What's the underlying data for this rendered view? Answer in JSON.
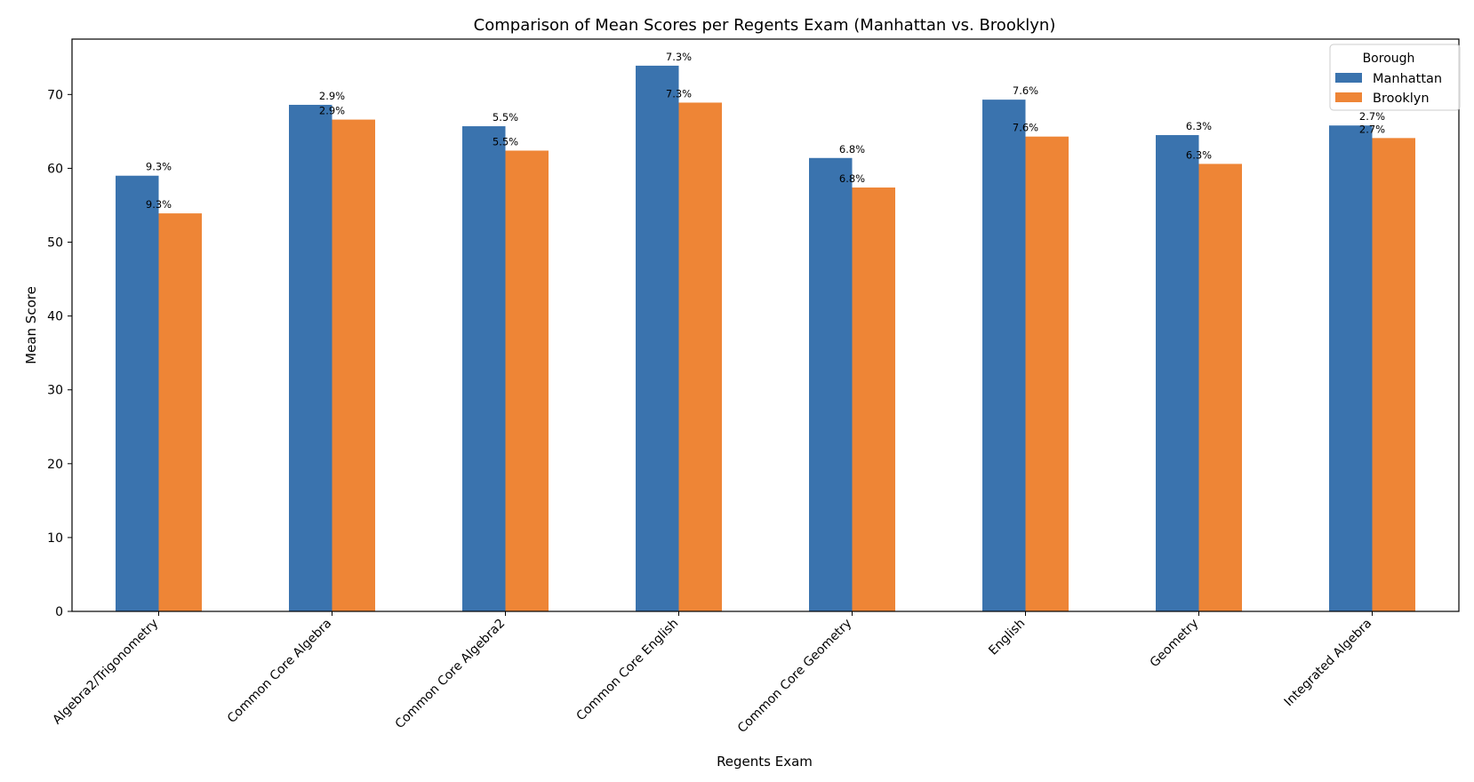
{
  "chart_data": {
    "type": "bar",
    "title": "Comparison of Mean Scores per Regents Exam (Manhattan vs. Brooklyn)",
    "xlabel": "Regents Exam",
    "ylabel": "Mean Score",
    "ylim": [
      0,
      77.5
    ],
    "yticks": [
      0,
      10,
      20,
      30,
      40,
      50,
      60,
      70
    ],
    "grid": false,
    "legend": {
      "title": "Borough",
      "placement": "top-right"
    },
    "categories": [
      "Algebra2/Trigonometry",
      "Common Core Algebra",
      "Common Core Algebra2",
      "Common Core English",
      "Common Core Geometry",
      "English",
      "Geometry",
      "Integrated Algebra"
    ],
    "series": [
      {
        "name": "Manhattan",
        "color": "#3a73ae",
        "values": [
          59.0,
          68.6,
          65.7,
          73.9,
          61.4,
          69.3,
          64.5,
          65.8
        ]
      },
      {
        "name": "Brooklyn",
        "color": "#ee8536",
        "values": [
          53.9,
          66.6,
          62.4,
          68.9,
          57.4,
          64.3,
          60.6,
          64.1
        ]
      }
    ],
    "annotations": [
      "9.3%",
      "2.9%",
      "5.5%",
      "7.3%",
      "6.8%",
      "7.6%",
      "6.3%",
      "2.7%"
    ]
  }
}
